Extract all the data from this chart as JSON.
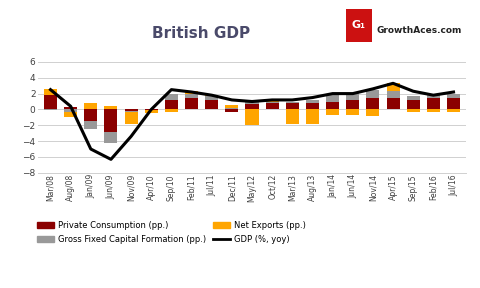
{
  "title": "British GDP",
  "categories": [
    "Mar/08",
    "Aug/08",
    "Jan/09",
    "Jun/09",
    "Nov/09",
    "Apr/10",
    "Sep/10",
    "Feb/11",
    "Jul/11",
    "Dec/11",
    "May/12",
    "Oct/12",
    "Mar/13",
    "Aug/13",
    "Jan/14",
    "Jun/14",
    "Nov/14",
    "Apr/15",
    "Sep/15",
    "Feb/16",
    "Jul/16"
  ],
  "private_consumption": [
    1.8,
    0.3,
    -1.5,
    -2.8,
    -0.15,
    -0.1,
    1.2,
    1.5,
    1.2,
    -0.35,
    0.75,
    0.8,
    0.8,
    0.8,
    1.0,
    1.2,
    1.5,
    1.5,
    1.2,
    1.5,
    1.5
  ],
  "gross_fixed": [
    -0.1,
    -0.35,
    -1.0,
    -1.4,
    -0.15,
    0.0,
    0.7,
    0.5,
    0.5,
    0.2,
    0.2,
    0.2,
    0.2,
    0.35,
    0.8,
    0.9,
    1.0,
    0.8,
    0.5,
    0.3,
    0.5
  ],
  "net_exports": [
    0.8,
    -0.6,
    0.8,
    0.4,
    -1.5,
    -0.4,
    -0.3,
    0.3,
    0.1,
    0.4,
    -2.0,
    0.2,
    -1.8,
    -1.8,
    -0.7,
    -0.7,
    -0.8,
    1.0,
    -0.3,
    -0.3,
    -0.3
  ],
  "gdp": [
    2.5,
    0.4,
    -5.0,
    -6.3,
    -3.4,
    0.0,
    2.5,
    2.2,
    1.8,
    1.2,
    1.0,
    1.2,
    1.2,
    1.5,
    2.0,
    2.0,
    2.6,
    3.3,
    2.3,
    1.8,
    2.2
  ],
  "color_consumption": "#8B0000",
  "color_gross_fixed": "#999999",
  "color_net_exports": "#FFA500",
  "color_gdp": "#000000",
  "ylim": [
    -8,
    8
  ],
  "yticks": [
    -8,
    -6,
    -4,
    -2,
    0,
    2,
    4,
    6
  ],
  "background_color": "#ffffff",
  "grid_color": "#d0d0d0"
}
